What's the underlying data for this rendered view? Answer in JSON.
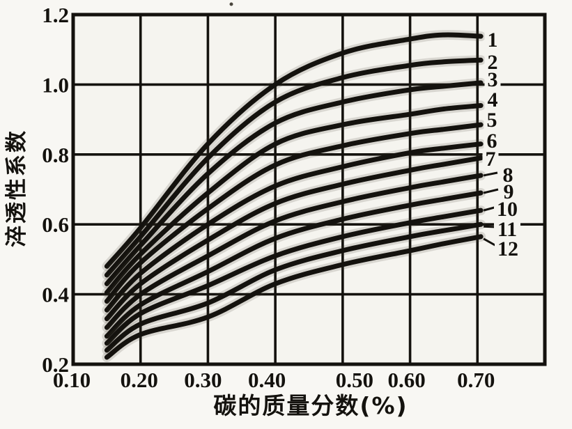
{
  "figure": {
    "background": "#f8f7f3",
    "plot_background": "#f5f4ef",
    "ink_color": "#14120e"
  },
  "chart_data": {
    "type": "line",
    "title": "",
    "xlabel": "碳的质量分数(%)",
    "ylabel": "淬透性系数",
    "xlim": [
      0.1,
      0.8
    ],
    "ylim": [
      0.2,
      1.2
    ],
    "grid": true,
    "legend_position": "curve-end-labels-right",
    "x_ticks": [
      {
        "value": 0.1,
        "label": "0.10"
      },
      {
        "value": 0.2,
        "label": "0.20"
      },
      {
        "value": 0.3,
        "label": "0.30"
      },
      {
        "value": 0.4,
        "label": "0.40"
      },
      {
        "value": 0.5,
        "label": "0.50"
      },
      {
        "value": 0.6,
        "label": "0.60"
      },
      {
        "value": 0.7,
        "label": "0.70"
      }
    ],
    "y_ticks": [
      {
        "value": 0.2,
        "label": "0.2"
      },
      {
        "value": 0.4,
        "label": "0.4"
      },
      {
        "value": 0.6,
        "label": "0.6"
      },
      {
        "value": 0.8,
        "label": "0.8"
      },
      {
        "value": 1.0,
        "label": "1.0"
      },
      {
        "value": 1.2,
        "label": "1.2"
      }
    ],
    "x": [
      0.15,
      0.2,
      0.3,
      0.4,
      0.5,
      0.6,
      0.65,
      0.705
    ],
    "series": [
      {
        "name": "1",
        "values": [
          0.48,
          0.59,
          0.83,
          1.0,
          1.09,
          1.13,
          1.142,
          1.138
        ]
      },
      {
        "name": "2",
        "values": [
          0.455,
          0.565,
          0.79,
          0.95,
          1.02,
          1.055,
          1.065,
          1.07
        ]
      },
      {
        "name": "3",
        "values": [
          0.43,
          0.54,
          0.745,
          0.89,
          0.95,
          0.985,
          0.995,
          1.005
        ]
      },
      {
        "name": "4",
        "values": [
          0.405,
          0.515,
          0.69,
          0.83,
          0.885,
          0.915,
          0.93,
          0.94
        ]
      },
      {
        "name": "5",
        "values": [
          0.38,
          0.49,
          0.645,
          0.77,
          0.825,
          0.86,
          0.872,
          0.885
        ]
      },
      {
        "name": "6",
        "values": [
          0.355,
          0.46,
          0.6,
          0.71,
          0.765,
          0.805,
          0.818,
          0.83
        ]
      },
      {
        "name": "7",
        "values": [
          0.33,
          0.43,
          0.555,
          0.66,
          0.715,
          0.755,
          0.772,
          0.79
        ]
      },
      {
        "name": "8",
        "values": [
          0.305,
          0.4,
          0.51,
          0.61,
          0.665,
          0.705,
          0.722,
          0.74
        ]
      },
      {
        "name": "9",
        "values": [
          0.28,
          0.37,
          0.465,
          0.56,
          0.615,
          0.655,
          0.672,
          0.69
        ]
      },
      {
        "name": "10",
        "values": [
          0.26,
          0.345,
          0.425,
          0.51,
          0.565,
          0.605,
          0.622,
          0.64
        ]
      },
      {
        "name": "11",
        "values": [
          0.24,
          0.315,
          0.375,
          0.47,
          0.525,
          0.565,
          0.582,
          0.6
        ]
      },
      {
        "name": "12",
        "values": [
          0.22,
          0.285,
          0.335,
          0.43,
          0.485,
          0.525,
          0.545,
          0.565
        ]
      }
    ]
  }
}
